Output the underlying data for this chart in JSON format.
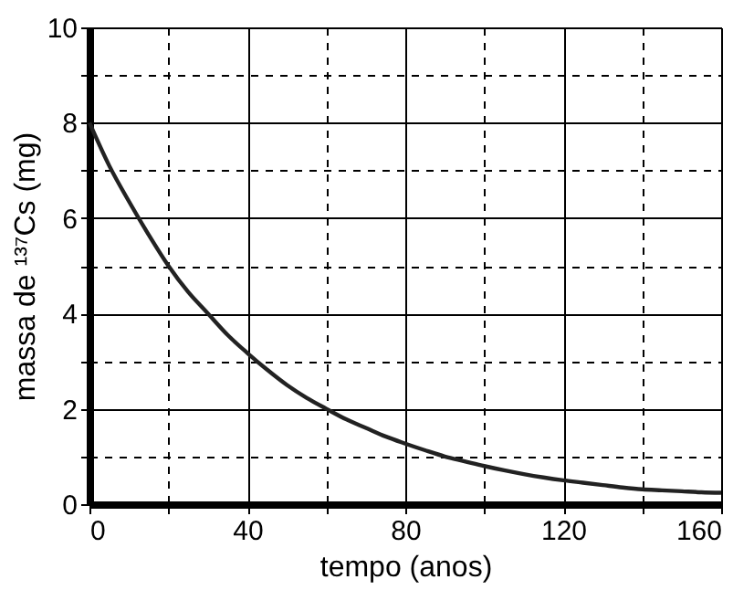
{
  "chart_data": {
    "type": "line",
    "xlabel": "tempo (anos)",
    "ylabel": "massa de ¹³⁷Cs (mg)",
    "x": [
      0,
      5,
      10,
      15,
      20,
      25,
      30,
      35,
      40,
      45,
      50,
      55,
      60,
      65,
      70,
      75,
      80,
      85,
      90,
      95,
      100,
      105,
      110,
      115,
      120,
      125,
      130,
      135,
      140,
      145,
      150,
      155,
      160
    ],
    "series": [
      {
        "color": "#222222",
        "values": [
          8,
          7.1,
          6.35,
          5.65,
          5.0,
          4.45,
          4.0,
          3.55,
          3.17,
          2.82,
          2.5,
          2.23,
          2.0,
          1.78,
          1.6,
          1.42,
          1.27,
          1.13,
          1.0,
          0.9,
          0.8,
          0.71,
          0.63,
          0.56,
          0.5,
          0.45,
          0.4,
          0.35,
          0.31,
          0.29,
          0.27,
          0.25,
          0.24
        ]
      }
    ],
    "xlim": [
      0,
      160
    ],
    "ylim": [
      0,
      10
    ],
    "xticks": [
      0,
      {
        "value": 20,
        "label": null
      },
      40,
      {
        "value": 60,
        "label": null
      },
      80,
      {
        "value": 100,
        "label": null
      },
      120,
      {
        "value": 140,
        "label": null
      },
      160
    ],
    "yticks": [
      0,
      {
        "value": 1,
        "label": null
      },
      2,
      {
        "value": 3,
        "label": null
      },
      4,
      {
        "value": 5,
        "label": null
      },
      6,
      {
        "value": 7,
        "label": null
      },
      8,
      {
        "value": 9,
        "label": null
      },
      10
    ],
    "grid": true,
    "marker": "none",
    "line_style": "solid"
  }
}
